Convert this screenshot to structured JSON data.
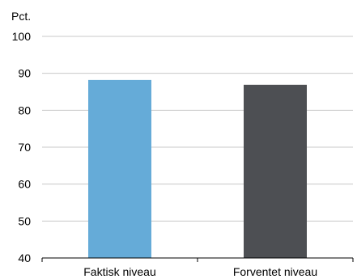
{
  "chart_data": {
    "type": "bar",
    "unit_label": "Pct.",
    "categories": [
      "Faktisk niveau",
      "Forventet niveau"
    ],
    "values": [
      88.2,
      86.9
    ],
    "colors": [
      "#65abd8",
      "#4d4f53"
    ],
    "ylim": [
      40,
      100
    ],
    "yticks": [
      "40",
      "50",
      "60",
      "70",
      "80",
      "90",
      "100"
    ],
    "grid": true,
    "legend": "none"
  }
}
